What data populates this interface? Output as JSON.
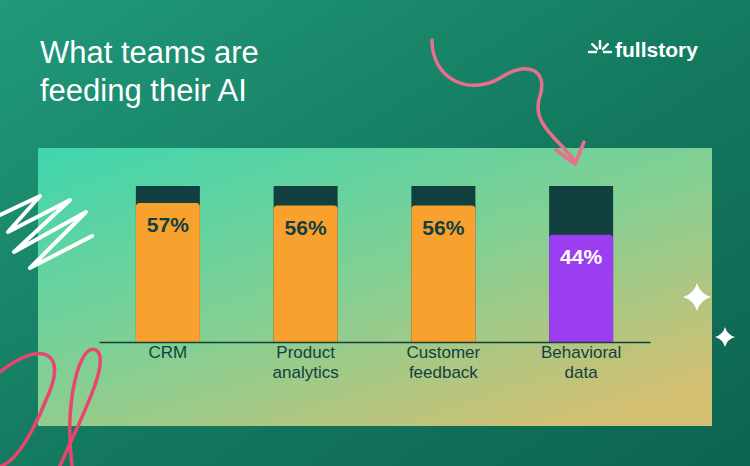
{
  "chart_data": {
    "type": "bar",
    "title": "What teams are feeding their AI",
    "categories": [
      "CRM",
      "Product analytics",
      "Customer feedback",
      "Behavioral data"
    ],
    "values": [
      57,
      56,
      56,
      44
    ],
    "value_labels": [
      "57%",
      "56%",
      "56%",
      "44%"
    ],
    "colors": [
      "#f9a12e",
      "#f9a12e",
      "#f9a12e",
      "#9b3df0"
    ],
    "ylim": [
      0,
      64
    ],
    "data_labels": true,
    "tick_labels": "x",
    "grid": false,
    "annotations": [
      "fullstory"
    ]
  }
}
